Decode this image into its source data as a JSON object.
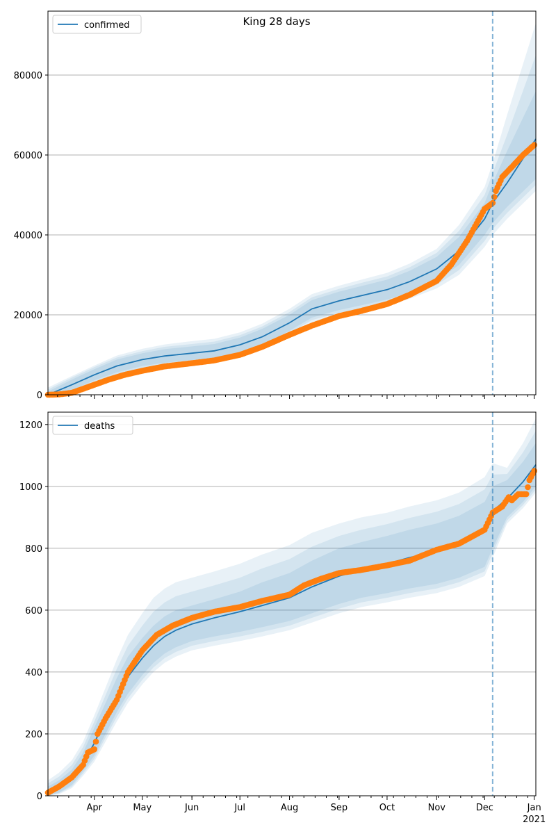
{
  "title": "King 28 days",
  "colors": {
    "model": "#1f77b4",
    "observed": "#ff7f0e",
    "band": "#1f77b4",
    "forecast_line": "#1f77b4",
    "grid": "#b0b0b0"
  },
  "x_axis": {
    "month_labels": [
      "Apr",
      "May",
      "Jun",
      "Jul",
      "Aug",
      "Sep",
      "Oct",
      "Nov",
      "Dec",
      "Jan"
    ],
    "month_dates": [
      "2020-04-01",
      "2020-05-01",
      "2020-06-01",
      "2020-07-01",
      "2020-08-01",
      "2020-09-01",
      "2020-10-01",
      "2020-11-01",
      "2020-12-01",
      "2021-01-01"
    ],
    "year_label": "2021",
    "xlim": [
      "2020-03-03",
      "2021-01-02"
    ],
    "forecast_start": "2020-12-06"
  },
  "chart_data": [
    {
      "type": "line",
      "legend": "confirmed",
      "legend_position": "top-left",
      "grid": "horizontal",
      "ylim": [
        0,
        96000
      ],
      "yticks": [
        0,
        20000,
        40000,
        60000,
        80000
      ],
      "ytick_labels": [
        "0",
        "20000",
        "40000",
        "60000",
        "80000"
      ],
      "model": {
        "x": [
          "2020-03-03",
          "2020-03-18",
          "2020-04-01",
          "2020-04-15",
          "2020-05-01",
          "2020-05-15",
          "2020-06-01",
          "2020-06-15",
          "2020-07-01",
          "2020-07-15",
          "2020-08-01",
          "2020-08-15",
          "2020-09-01",
          "2020-09-15",
          "2020-10-01",
          "2020-10-15",
          "2020-11-01",
          "2020-11-15",
          "2020-12-01",
          "2020-12-06",
          "2020-12-15",
          "2021-01-02"
        ],
        "y": [
          0,
          2500,
          5000,
          7200,
          8800,
          9700,
          10400,
          11000,
          12500,
          14500,
          18000,
          21500,
          23500,
          24800,
          26300,
          28300,
          31500,
          36000,
          44000,
          48000,
          53000,
          64000
        ],
        "bands": [
          {
            "lower": [
              0,
              1200,
              3600,
              5600,
              7200,
              8000,
              8700,
              9300,
              10700,
              12500,
              16000,
              19300,
              21200,
              22400,
              23800,
              25600,
              28500,
              32500,
              40000,
              43000,
              47000,
              54000
            ],
            "upper": [
              800,
              3800,
              6400,
              8800,
              10400,
              11400,
              12100,
              12700,
              14300,
              16500,
              20000,
              23700,
              25800,
              27200,
              28800,
              31000,
              34500,
              39500,
              48000,
              53000,
              61000,
              76000
            ]
          },
          {
            "lower": [
              0,
              500,
              2800,
              4600,
              6100,
              6900,
              7500,
              8100,
              9500,
              11300,
              14800,
              18000,
              19800,
              20900,
              22300,
              24000,
              26600,
              30000,
              37000,
              40000,
              44000,
              51000
            ],
            "upper": [
              1800,
              4700,
              7300,
              9800,
              11500,
              12600,
              13400,
              14000,
              15600,
              17800,
              21500,
              25200,
              27300,
              28800,
              30500,
              32800,
              36500,
              42500,
              52000,
              58000,
              70000,
              93000
            ]
          },
          {
            "lower": [
              0,
              800,
              3100,
              5000,
              6600,
              7400,
              8100,
              8700,
              10100,
              11900,
              15400,
              18700,
              20500,
              21700,
              23100,
              24800,
              27500,
              31200,
              38500,
              41500,
              45500,
              52500
            ],
            "upper": [
              1300,
              4300,
              6900,
              9300,
              10900,
              12000,
              12700,
              13300,
              14900,
              17100,
              20700,
              24400,
              26500,
              28000,
              29600,
              31900,
              35500,
              41000,
              50000,
              55500,
              65000,
              85000
            ]
          }
        ]
      },
      "observed": {
        "x": [
          "2020-03-03",
          "2020-03-10",
          "2020-03-18",
          "2020-03-25",
          "2020-04-01",
          "2020-04-10",
          "2020-04-20",
          "2020-05-01",
          "2020-05-15",
          "2020-06-01",
          "2020-06-15",
          "2020-07-01",
          "2020-07-15",
          "2020-08-01",
          "2020-08-15",
          "2020-09-01",
          "2020-09-15",
          "2020-10-01",
          "2020-10-15",
          "2020-11-01",
          "2020-11-10",
          "2020-11-20",
          "2020-12-01",
          "2020-12-06",
          "2020-12-08",
          "2020-12-12",
          "2020-12-18",
          "2020-12-25",
          "2021-01-01"
        ],
        "y": [
          0,
          100,
          500,
          1500,
          2500,
          3800,
          5000,
          6000,
          7100,
          7900,
          8600,
          10000,
          12000,
          15000,
          17300,
          19700,
          21000,
          22700,
          25000,
          28500,
          32500,
          38500,
          46500,
          48000,
          51000,
          54500,
          57000,
          60000,
          62500
        ]
      }
    },
    {
      "type": "line",
      "legend": "deaths",
      "legend_position": "top-left",
      "grid": "horizontal",
      "ylim": [
        0,
        1240
      ],
      "yticks": [
        0,
        200,
        400,
        600,
        800,
        1000,
        1200
      ],
      "ytick_labels": [
        "0",
        "200",
        "400",
        "600",
        "800",
        "1000",
        "1200"
      ],
      "model": {
        "x": [
          "2020-03-03",
          "2020-03-10",
          "2020-03-18",
          "2020-03-25",
          "2020-04-01",
          "2020-04-08",
          "2020-04-15",
          "2020-04-22",
          "2020-05-01",
          "2020-05-08",
          "2020-05-15",
          "2020-05-22",
          "2020-06-01",
          "2020-06-15",
          "2020-07-01",
          "2020-07-15",
          "2020-08-01",
          "2020-08-15",
          "2020-09-01",
          "2020-09-15",
          "2020-10-01",
          "2020-10-15",
          "2020-11-01",
          "2020-11-15",
          "2020-12-01",
          "2020-12-06",
          "2020-12-15",
          "2020-12-25",
          "2021-01-02"
        ],
        "y": [
          10,
          25,
          55,
          105,
          170,
          250,
          320,
          385,
          445,
          485,
          515,
          535,
          555,
          575,
          595,
          615,
          640,
          675,
          710,
          730,
          750,
          770,
          790,
          815,
          860,
          920,
          960,
          1015,
          1070
        ],
        "bands": [
          {
            "lower": [
              0,
              10,
              35,
              80,
              130,
              200,
              270,
              330,
              390,
              430,
              460,
              480,
              500,
              515,
              530,
              545,
              565,
              590,
              620,
              640,
              655,
              670,
              685,
              705,
              740,
              800,
              900,
              950,
              1000
            ],
            "upper": [
              30,
              50,
              85,
              140,
              220,
              300,
              380,
              450,
              510,
              550,
              580,
              600,
              615,
              635,
              660,
              690,
              720,
              760,
              800,
              820,
              840,
              860,
              880,
              905,
              950,
              1000,
              1020,
              1080,
              1140
            ]
          },
          {
            "lower": [
              0,
              5,
              25,
              65,
              110,
              175,
              240,
              300,
              360,
              400,
              430,
              450,
              470,
              485,
              500,
              515,
              535,
              560,
              590,
              610,
              625,
              640,
              655,
              675,
              710,
              770,
              880,
              930,
              980
            ],
            "upper": [
              50,
              75,
              115,
              175,
              260,
              350,
              440,
              520,
              590,
              640,
              670,
              690,
              705,
              725,
              750,
              780,
              810,
              850,
              880,
              900,
              915,
              935,
              955,
              980,
              1030,
              1075,
              1060,
              1140,
              1220
            ]
          },
          {
            "lower": [
              0,
              8,
              30,
              72,
              120,
              188,
              255,
              315,
              375,
              415,
              445,
              465,
              485,
              500,
              515,
              530,
              550,
              575,
              605,
              625,
              640,
              655,
              670,
              690,
              725,
              785,
              890,
              940,
              990
            ],
            "upper": [
              40,
              62,
              100,
              158,
              240,
              325,
              410,
              485,
              550,
              595,
              625,
              645,
              660,
              680,
              705,
              735,
              765,
              805,
              840,
              860,
              878,
              898,
              918,
              943,
              990,
              1038,
              1040,
              1110,
              1180
            ]
          }
        ]
      },
      "observed": {
        "x": [
          "2020-03-03",
          "2020-03-10",
          "2020-03-18",
          "2020-03-25",
          "2020-03-28",
          "2020-04-01",
          "2020-04-03",
          "2020-04-08",
          "2020-04-15",
          "2020-04-22",
          "2020-05-01",
          "2020-05-10",
          "2020-05-20",
          "2020-06-01",
          "2020-06-15",
          "2020-07-01",
          "2020-07-15",
          "2020-08-01",
          "2020-08-10",
          "2020-08-20",
          "2020-09-01",
          "2020-09-15",
          "2020-10-01",
          "2020-10-15",
          "2020-11-01",
          "2020-11-15",
          "2020-12-01",
          "2020-12-06",
          "2020-12-12",
          "2020-12-16",
          "2020-12-18",
          "2020-12-22",
          "2020-12-27",
          "2020-12-29",
          "2021-01-01"
        ],
        "y": [
          10,
          30,
          60,
          100,
          140,
          150,
          200,
          250,
          310,
          400,
          470,
          520,
          550,
          575,
          595,
          610,
          630,
          650,
          680,
          700,
          720,
          730,
          745,
          760,
          795,
          815,
          860,
          915,
          935,
          965,
          955,
          975,
          975,
          1020,
          1050
        ]
      }
    }
  ]
}
